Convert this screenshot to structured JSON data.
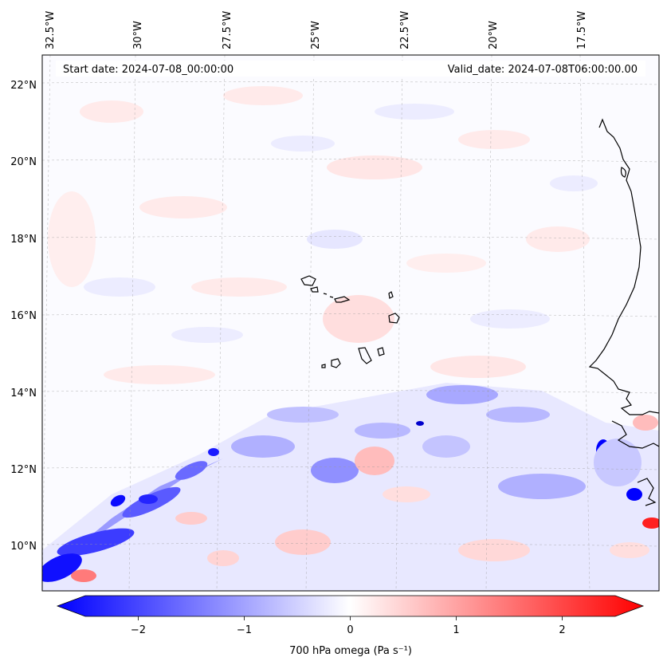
{
  "header": {
    "start_date": "Start date: 2024-07-08_00:00:00",
    "valid_date": "Valid_date: 2024-07-08T06:00:00.00"
  },
  "axes": {
    "lon_labels": [
      "32.5°W",
      "30°W",
      "27.5°W",
      "25°W",
      "22.5°W",
      "20°W",
      "17.5°W"
    ],
    "lat_labels": [
      "22°N",
      "20°N",
      "18°N",
      "16°N",
      "14°N",
      "12°N",
      "10°N"
    ]
  },
  "colorbar": {
    "label": "700 hPa omega (Pa s⁻¹)",
    "ticks": [
      "−2",
      "−1",
      "0",
      "1",
      "2"
    ],
    "tick_values": [
      -2,
      -1,
      0,
      1,
      2
    ],
    "range": [
      -2.5,
      2.5
    ],
    "color_low": "#0000ff",
    "color_mid": "#ffffff",
    "color_high": "#ff0000"
  }
}
